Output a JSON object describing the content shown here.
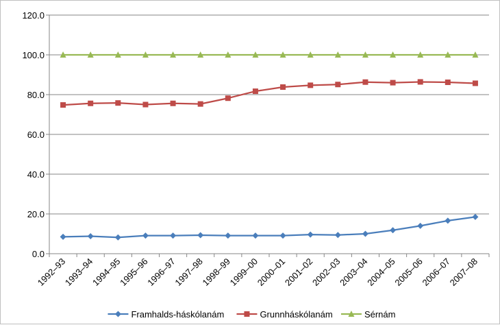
{
  "chart_data": {
    "type": "line",
    "title": "",
    "xlabel": "",
    "ylabel": "",
    "ylim": [
      0,
      120
    ],
    "yticks": [
      "0.0",
      "20.0",
      "40.0",
      "60.0",
      "80.0",
      "100.0",
      "120.0"
    ],
    "ytick_values": [
      0,
      20,
      40,
      60,
      80,
      100,
      120
    ],
    "grid": true,
    "legend_position": "bottom",
    "categories": [
      "1992–93",
      "1993–94",
      "1994–95",
      "1995–96",
      "1996–97",
      "1997–98",
      "1998–99",
      "1999–00",
      "2000–01",
      "2001–02",
      "2002–03",
      "2003–04",
      "2004–05",
      "2005–06",
      "2006–07",
      "2007–08"
    ],
    "series": [
      {
        "name": "Framhalds-háskólanám",
        "color": "#4a7ebb",
        "marker": "diamond",
        "values": [
          8.5,
          8.8,
          8.2,
          9.1,
          9.1,
          9.3,
          9.1,
          9.1,
          9.1,
          9.6,
          9.4,
          10.0,
          11.8,
          14.0,
          16.6,
          18.5
        ]
      },
      {
        "name": "Grunnháskólanám",
        "color": "#be4b48",
        "marker": "square",
        "values": [
          74.8,
          75.6,
          75.8,
          75.0,
          75.6,
          75.3,
          78.2,
          81.7,
          83.8,
          84.7,
          85.1,
          86.3,
          86.0,
          86.4,
          86.2,
          85.7
        ]
      },
      {
        "name": "Sérnám",
        "color": "#98b954",
        "marker": "triangle",
        "values": [
          100,
          100,
          100,
          100,
          100,
          100,
          100,
          100,
          100,
          100,
          100,
          100,
          100,
          100,
          100,
          100
        ]
      }
    ]
  }
}
